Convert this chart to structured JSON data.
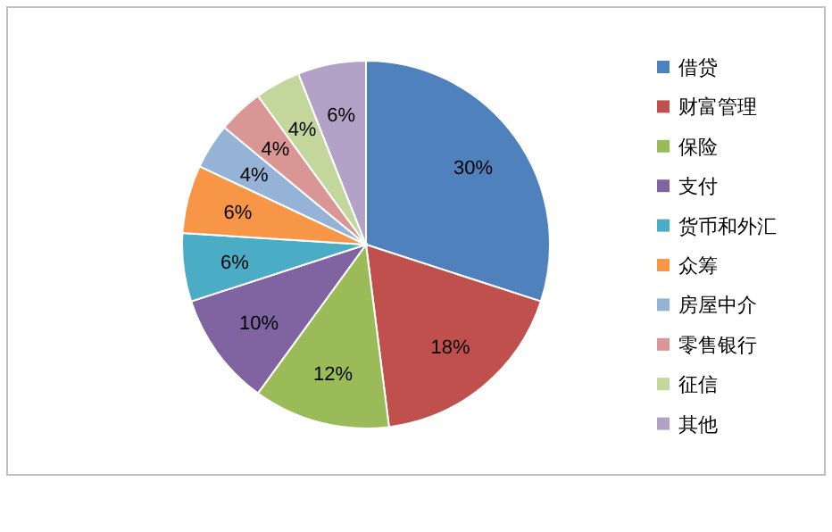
{
  "chart_data": {
    "type": "pie",
    "categories": [
      "借贷",
      "财富管理",
      "保险",
      "支付",
      "货币和外汇",
      "众筹",
      "房屋中介",
      "零售银行",
      "征信",
      "其他"
    ],
    "values": [
      30,
      18,
      12,
      10,
      6,
      6,
      4,
      4,
      4,
      6
    ],
    "value_labels": [
      "30%",
      "18%",
      "12%",
      "10%",
      "6%",
      "6%",
      "4%",
      "4%",
      "4%",
      "6%"
    ],
    "colors": [
      "#4f81bd",
      "#c0504d",
      "#9bbb59",
      "#8064a2",
      "#4bacc6",
      "#f79646",
      "#95b3d7",
      "#d99694",
      "#c3d69b",
      "#b3a2c7"
    ],
    "legend": "right"
  }
}
